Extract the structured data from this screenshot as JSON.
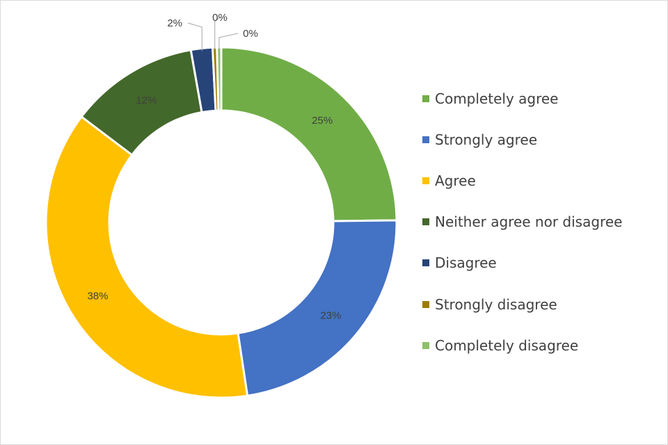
{
  "chart_data": {
    "type": "pie",
    "variant": "donut",
    "title": "",
    "categories": [
      "Completely agree",
      "Strongly agree",
      "Agree",
      "Neither agree nor disagree",
      "Disagree",
      "Strongly disagree",
      "Completely disagree"
    ],
    "values": [
      25,
      23,
      38,
      12,
      2,
      0,
      0
    ],
    "value_labels": [
      "25%",
      "23%",
      "38%",
      "12%",
      "2%",
      "0%",
      "0%"
    ],
    "colors": [
      "#70ad47",
      "#4472c4",
      "#ffc000",
      "#43682b",
      "#264478",
      "#9e7b00",
      "#8cc168"
    ],
    "legend_position": "right"
  }
}
